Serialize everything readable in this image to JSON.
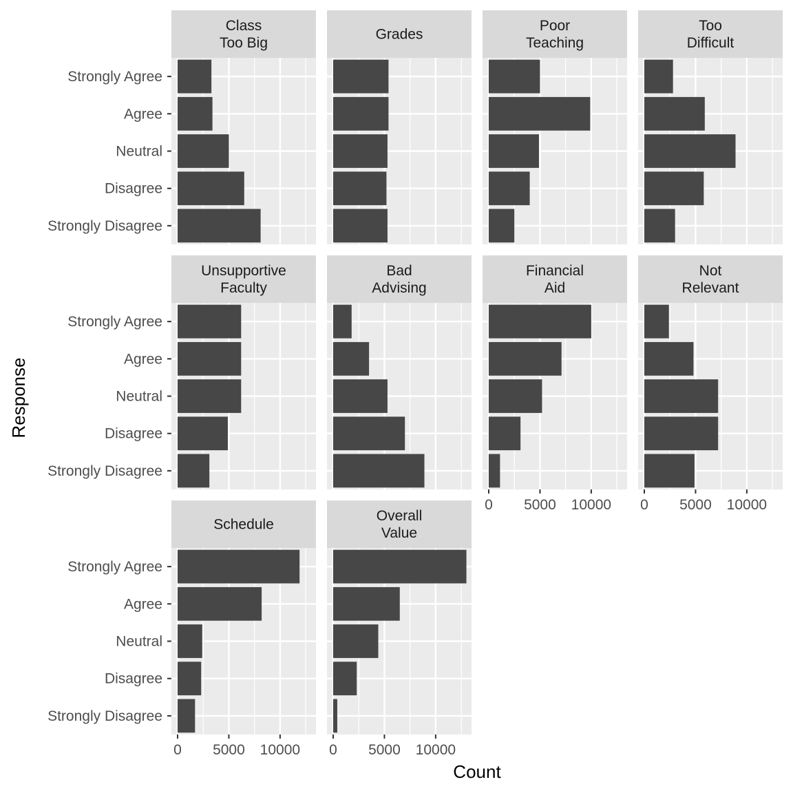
{
  "chart_data": {
    "type": "bar",
    "orientation": "horizontal",
    "layout": "facet_wrap",
    "xlabel": "Count",
    "ylabel": "Response",
    "xlim": [
      0,
      13500
    ],
    "x_ticks": [
      0,
      5000,
      10000
    ],
    "x_tick_labels": [
      "0",
      "5000",
      "10000"
    ],
    "categories": [
      "Strongly Agree",
      "Agree",
      "Neutral",
      "Disagree",
      "Strongly Disagree"
    ],
    "grid": true,
    "colors": {
      "bar": "#474747",
      "panel": "#ebebeb",
      "strip": "#d9d9d9",
      "grid": "#ffffff"
    },
    "facets": [
      {
        "lines": [
          "Class",
          "Too Big"
        ],
        "values": [
          3300,
          3400,
          5000,
          6500,
          8100
        ]
      },
      {
        "lines": [
          "Grades"
        ],
        "values": [
          5400,
          5400,
          5300,
          5200,
          5300
        ]
      },
      {
        "lines": [
          "Poor",
          "Teaching"
        ],
        "values": [
          5000,
          9900,
          4900,
          4000,
          2500
        ]
      },
      {
        "lines": [
          "Too",
          "Difficult"
        ],
        "values": [
          2800,
          5900,
          8900,
          5800,
          3000
        ]
      },
      {
        "lines": [
          "Unsupportive",
          "Faculty"
        ],
        "values": [
          6200,
          6200,
          6200,
          4900,
          3100
        ]
      },
      {
        "lines": [
          "Bad",
          "Advising"
        ],
        "values": [
          1800,
          3500,
          5300,
          7000,
          8900
        ]
      },
      {
        "lines": [
          "Financial",
          "Aid"
        ],
        "values": [
          10000,
          7100,
          5200,
          3100,
          1100
        ]
      },
      {
        "lines": [
          "Not",
          "Relevant"
        ],
        "values": [
          2400,
          4800,
          7200,
          7200,
          4900
        ]
      },
      {
        "lines": [
          "Schedule"
        ],
        "values": [
          11900,
          8200,
          2400,
          2300,
          1700
        ]
      },
      {
        "lines": [
          "Overall",
          "Value"
        ],
        "values": [
          13000,
          6500,
          4400,
          2300,
          400
        ]
      }
    ]
  }
}
